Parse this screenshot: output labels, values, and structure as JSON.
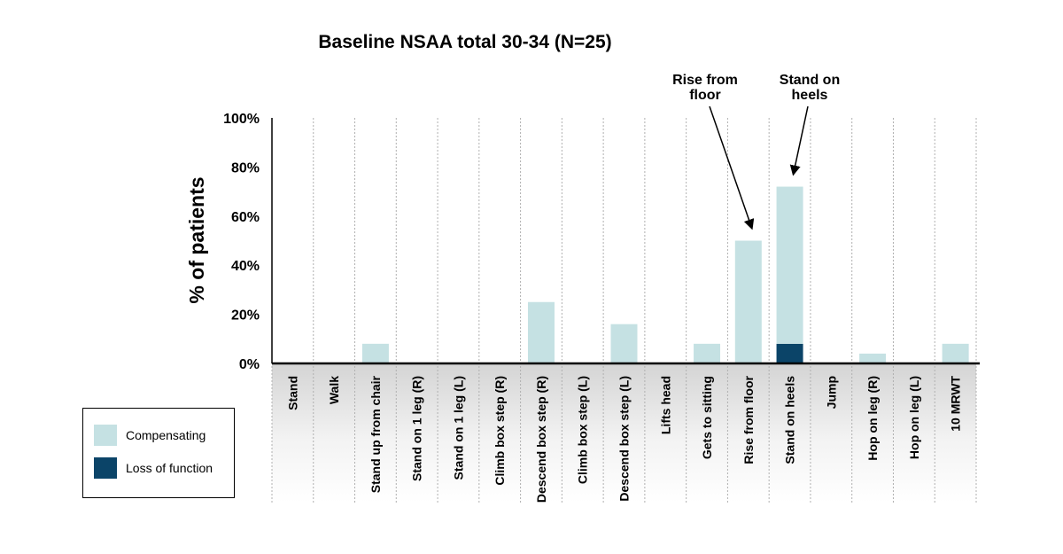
{
  "chart_data": {
    "type": "bar",
    "stacked": true,
    "title": "Baseline NSAA total 30-34 (N=25)",
    "ylabel": "% of patients",
    "xlabel": "",
    "ylim": [
      0,
      100
    ],
    "yticks": [
      "0%",
      "20%",
      "40%",
      "60%",
      "80%",
      "100%"
    ],
    "ytick_values": [
      0,
      20,
      40,
      60,
      80,
      100
    ],
    "grid": "vertical dotted",
    "categories": [
      "Stand",
      "Walk",
      "Stand up from chair",
      "Stand on 1 leg (R)",
      "Stand on 1 leg (L)",
      "Climb box step (R)",
      "Descend box step (R)",
      "Climb box step (L)",
      "Descend box step (L)",
      "Lifts head",
      "Gets to sitting",
      "Rise from floor",
      "Stand on heels",
      "Jump",
      "Hop on leg (R)",
      "Hop on leg (L)",
      "10 MRWT"
    ],
    "series": [
      {
        "name": "Loss of function",
        "color": "#0b4468",
        "values": [
          0,
          0,
          0,
          0,
          0,
          0,
          0,
          0,
          0,
          0,
          0,
          0,
          8,
          0,
          0,
          0,
          0
        ]
      },
      {
        "name": "Compensating",
        "color": "#c5e1e3",
        "values": [
          0,
          0,
          8,
          0,
          0,
          0,
          25,
          0,
          16,
          0,
          8,
          50,
          64,
          0,
          4,
          0,
          8
        ]
      }
    ],
    "annotations": [
      {
        "lines": [
          "Rise from",
          "floor"
        ],
        "target": "Rise from floor"
      },
      {
        "lines": [
          "Stand on",
          "heels"
        ],
        "target": "Stand on heels"
      }
    ],
    "legend": {
      "placement": "bottom-left",
      "items": [
        {
          "label": "Compensating",
          "color": "#c5e1e3"
        },
        {
          "label": "Loss of function",
          "color": "#0b4468"
        }
      ]
    }
  }
}
